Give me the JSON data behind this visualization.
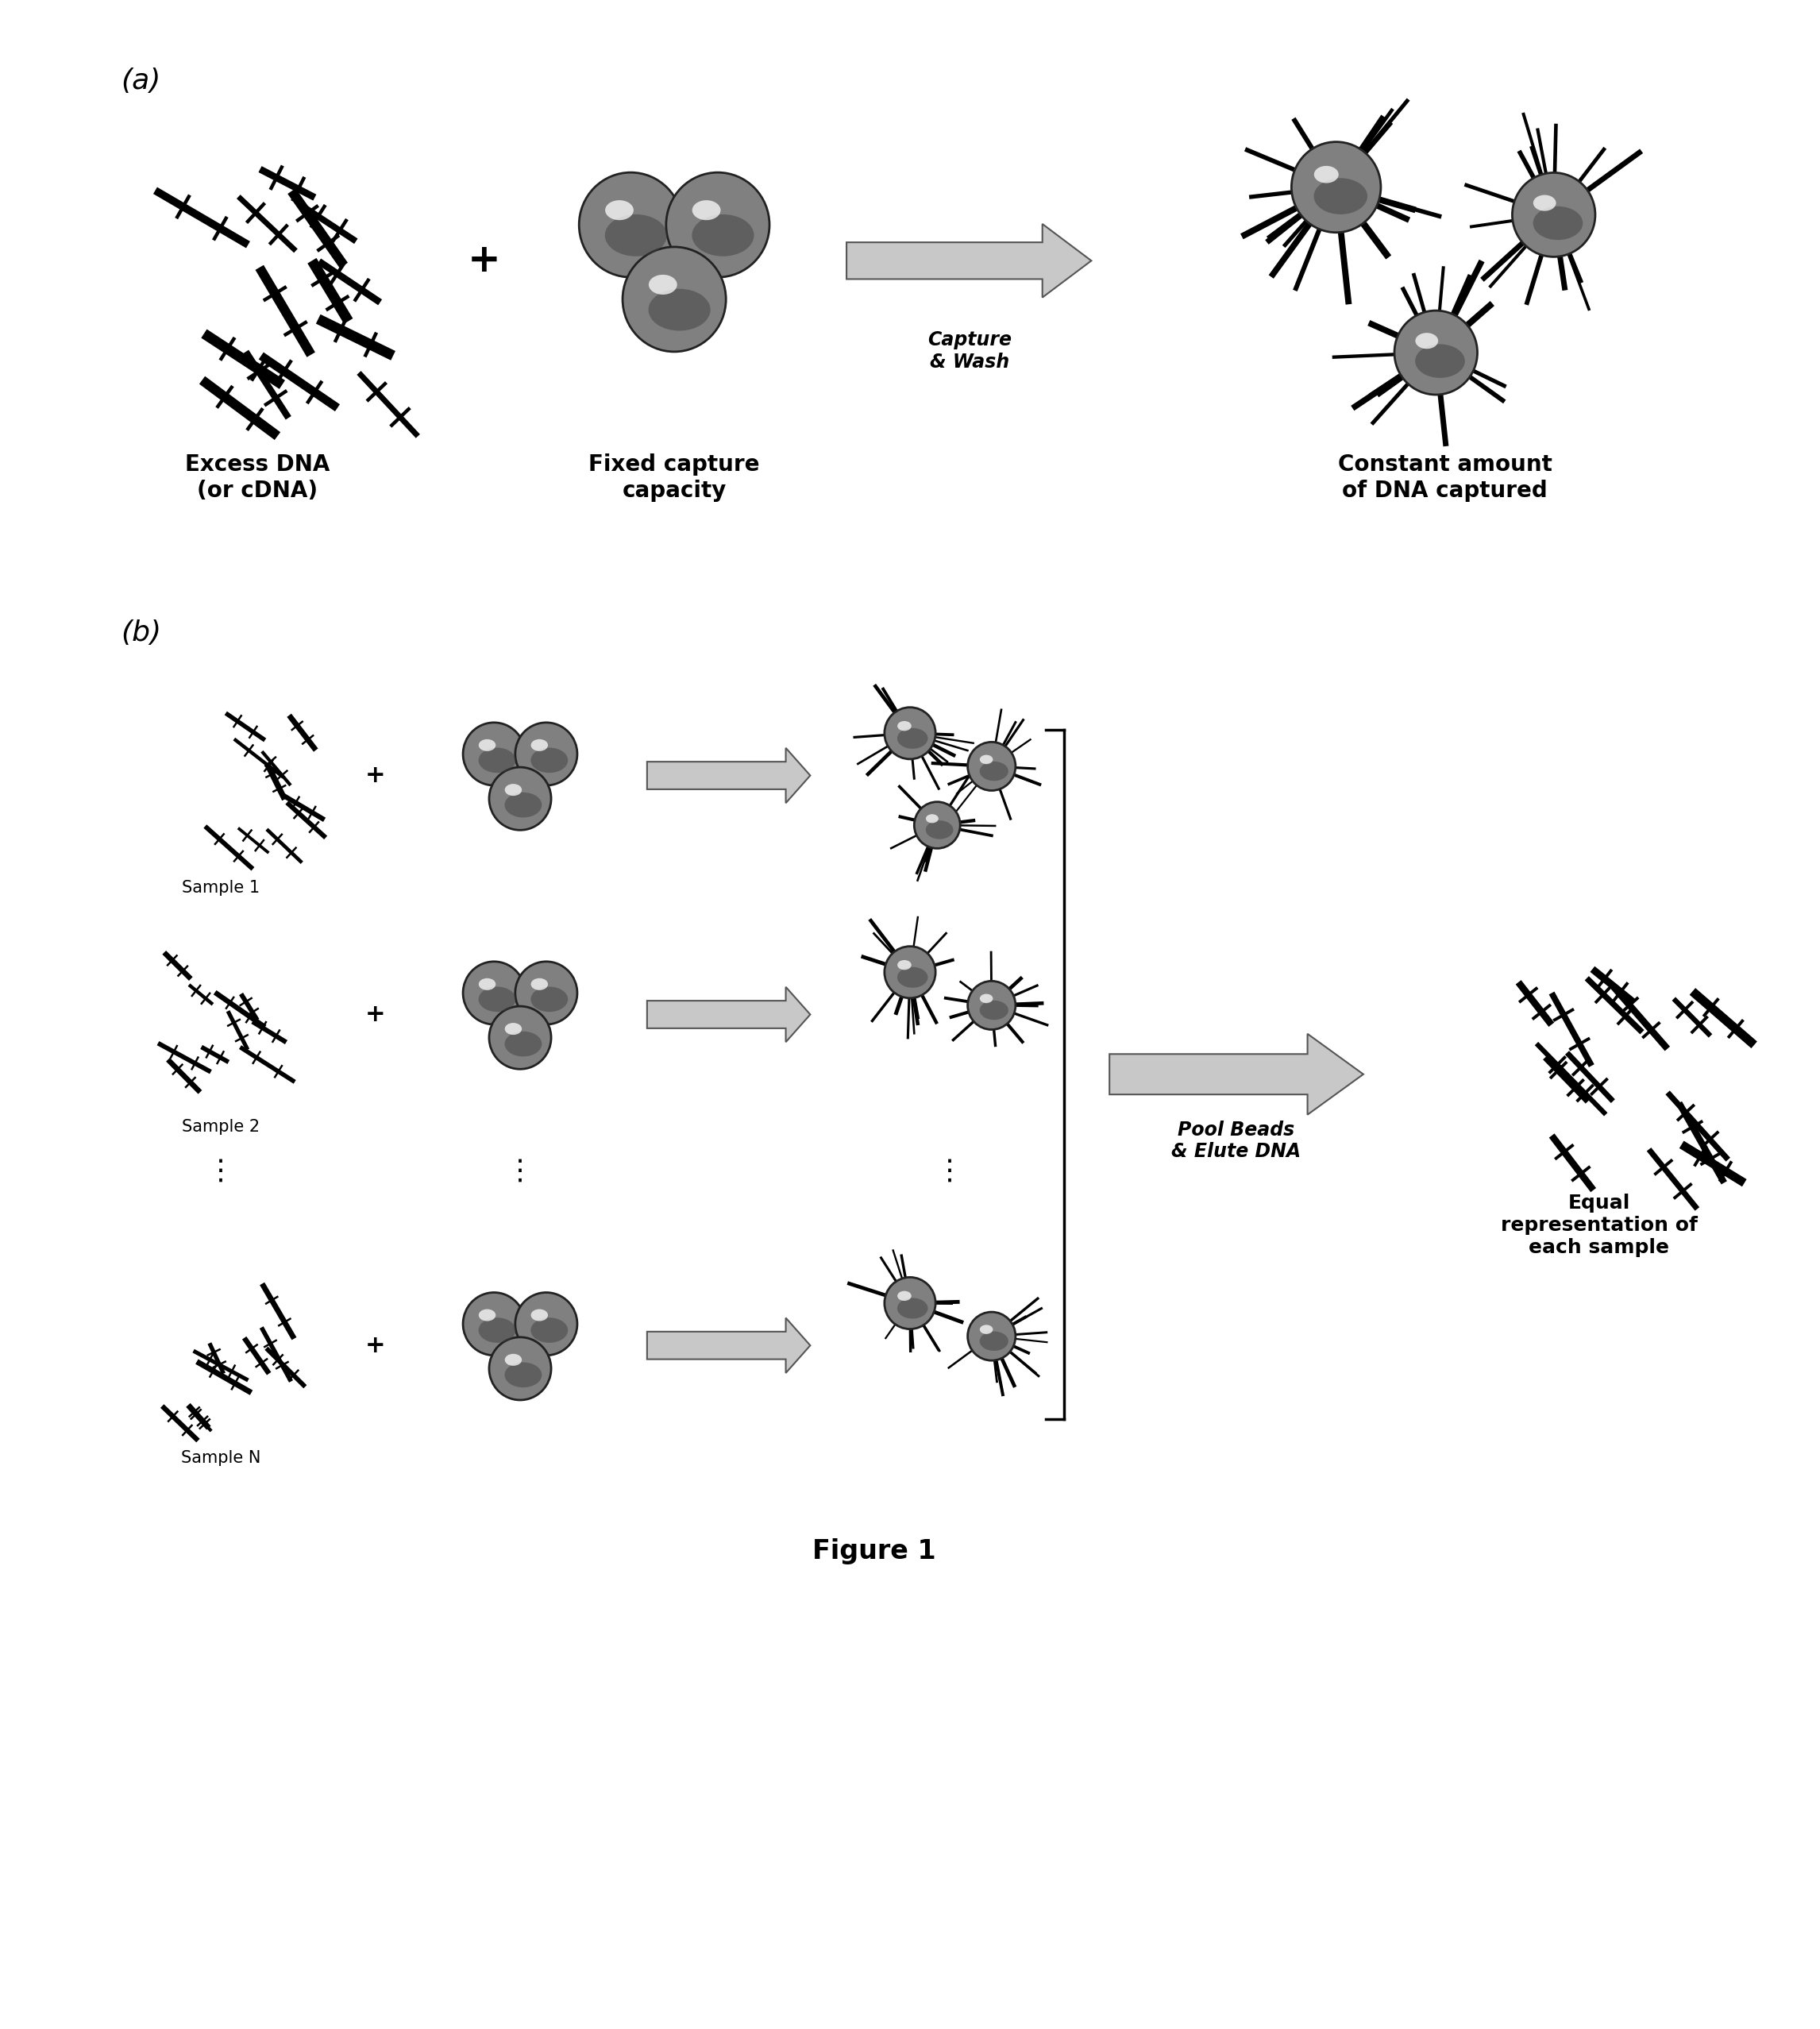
{
  "bg_color": "#ffffff",
  "label_a": "(a)",
  "label_b": "(b)",
  "text_excess_dna": "Excess DNA\n(or cDNA)",
  "text_fixed_capture": "Fixed capture\ncapacity",
  "text_constant_amount": "Constant amount\nof DNA captured",
  "text_capture_wash": "Capture\n& Wash",
  "text_pool_beads": "Pool Beads\n& Elute DNA",
  "text_equal_rep": "Equal\nrepresentation of\neach sample",
  "text_sample1": "Sample 1",
  "text_sample2": "Sample 2",
  "text_sampleN": "Sample N",
  "text_figure1": "Figure 1",
  "font_label": 26,
  "font_text": 20,
  "font_figure": 24,
  "font_caption": 17
}
